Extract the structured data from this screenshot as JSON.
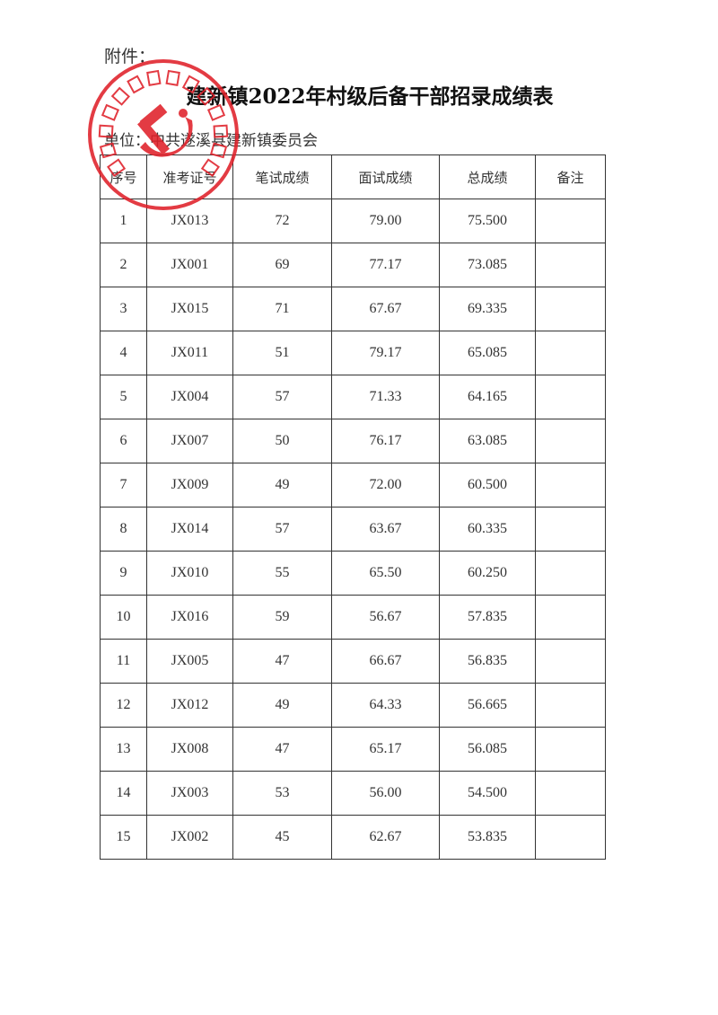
{
  "attachment_label": "附件：",
  "title": "建新镇2022年村级后备干部招录成绩表",
  "unit_line": "单位：中共遂溪县建新镇委员会",
  "seal": {
    "text": "中国共产党遂溪县建新镇委员会",
    "color": "#e0202a",
    "icon": "hammer-sickle-icon"
  },
  "table": {
    "headers": [
      "序号",
      "准考证号",
      "笔试成绩",
      "面试成绩",
      "总成绩",
      "备注"
    ],
    "rows": [
      [
        "1",
        "JX013",
        "72",
        "79.00",
        "75.500",
        ""
      ],
      [
        "2",
        "JX001",
        "69",
        "77.17",
        "73.085",
        ""
      ],
      [
        "3",
        "JX015",
        "71",
        "67.67",
        "69.335",
        ""
      ],
      [
        "4",
        "JX011",
        "51",
        "79.17",
        "65.085",
        ""
      ],
      [
        "5",
        "JX004",
        "57",
        "71.33",
        "64.165",
        ""
      ],
      [
        "6",
        "JX007",
        "50",
        "76.17",
        "63.085",
        ""
      ],
      [
        "7",
        "JX009",
        "49",
        "72.00",
        "60.500",
        ""
      ],
      [
        "8",
        "JX014",
        "57",
        "63.67",
        "60.335",
        ""
      ],
      [
        "9",
        "JX010",
        "55",
        "65.50",
        "60.250",
        ""
      ],
      [
        "10",
        "JX016",
        "59",
        "56.67",
        "57.835",
        ""
      ],
      [
        "11",
        "JX005",
        "47",
        "66.67",
        "56.835",
        ""
      ],
      [
        "12",
        "JX012",
        "49",
        "64.33",
        "56.665",
        ""
      ],
      [
        "13",
        "JX008",
        "47",
        "65.17",
        "56.085",
        ""
      ],
      [
        "14",
        "JX003",
        "53",
        "56.00",
        "54.500",
        ""
      ],
      [
        "15",
        "JX002",
        "45",
        "62.67",
        "53.835",
        ""
      ]
    ]
  }
}
